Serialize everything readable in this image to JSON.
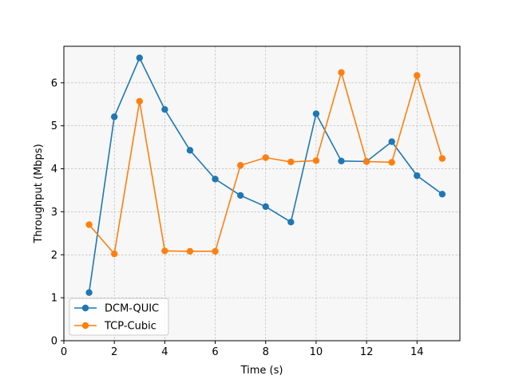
{
  "chart_data": {
    "type": "line",
    "title": "",
    "xlabel": "Time (s)",
    "ylabel": "Throughput (Mbps)",
    "xlim": [
      0,
      15.7
    ],
    "ylim": [
      0,
      6.85
    ],
    "xticks": [
      0,
      2,
      4,
      6,
      8,
      10,
      12,
      14
    ],
    "yticks": [
      0,
      1,
      2,
      3,
      4,
      5,
      6
    ],
    "grid": true,
    "grid_style": "dashed",
    "background": "#f7f7f7",
    "legend_position": "lower-left",
    "x": [
      1,
      2,
      3,
      4,
      5,
      6,
      7,
      8,
      9,
      10,
      11,
      12,
      13,
      14,
      15
    ],
    "series": [
      {
        "name": "DCM-QUIC",
        "color": "#1f77b4",
        "marker": "circle",
        "values": [
          1.12,
          5.21,
          6.58,
          5.38,
          4.43,
          3.76,
          3.38,
          3.12,
          2.76,
          5.28,
          4.18,
          4.17,
          4.63,
          3.84,
          3.41
        ]
      },
      {
        "name": "TCP-Cubic",
        "color": "#ff7f0e",
        "marker": "circle",
        "values": [
          2.7,
          2.02,
          5.57,
          2.09,
          2.08,
          2.08,
          4.08,
          4.26,
          4.16,
          4.19,
          6.24,
          4.17,
          4.15,
          6.17,
          4.24
        ]
      }
    ]
  }
}
